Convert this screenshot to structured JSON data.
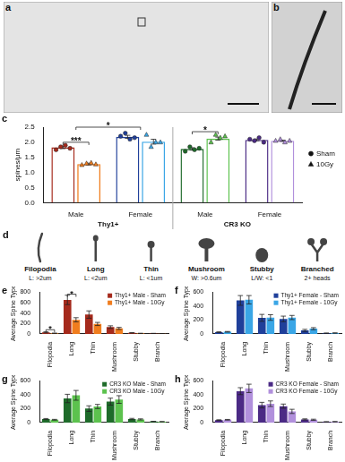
{
  "images": [
    {
      "label": "a"
    },
    {
      "label": "b"
    }
  ],
  "diagram": {
    "label": "d",
    "items": [
      {
        "name": "Filopodia",
        "criterion": "L: >2um"
      },
      {
        "name": "Long",
        "criterion": "L: <2um"
      },
      {
        "name": "Thin",
        "criterion": "L: <1um"
      },
      {
        "name": "Mushroom",
        "criterion": "W: >0.6um"
      },
      {
        "name": "Stubby",
        "criterion": "L/W: <1"
      },
      {
        "name": "Branched",
        "criterion": "2+ heads"
      }
    ]
  },
  "chart_data": [
    {
      "label": "c",
      "type": "bar",
      "y_label": "spines/μm",
      "categories": [
        "Male",
        "Female",
        "Male",
        "Female"
      ],
      "groups": [
        "Thy1+",
        "Thy1+",
        "CR3 KO",
        "CR3 KO"
      ],
      "ylim": [
        0,
        2.5
      ],
      "yticks": [
        {
          "value": 0,
          "label": "0.0"
        },
        {
          "value": 0.5,
          "label": "0.5"
        },
        {
          "value": 1,
          "label": "1.0"
        },
        {
          "value": 1.5,
          "label": "1.5"
        },
        {
          "value": 2,
          "label": "2.0"
        },
        {
          "value": 2.5,
          "label": "2.5"
        }
      ],
      "grid": false,
      "legend": "right",
      "series": [
        {
          "name": "Sham",
          "marker": "circle",
          "colors": [
            "#a52a1c",
            "#1f3f9a",
            "#1e6b2a",
            "#4b2a85"
          ],
          "values": [
            1.83,
            2.18,
            1.78,
            2.08
          ],
          "errors": [
            0.04,
            0.05,
            0.04,
            0.03
          ],
          "points": [
            [
              1.75,
              1.85,
              1.9,
              1.8
            ],
            [
              2.2,
              2.3,
              2.1,
              2.15
            ],
            [
              1.7,
              1.85,
              1.75,
              1.8
            ],
            [
              2.1,
              2.05,
              2.15,
              2.0
            ]
          ]
        },
        {
          "name": "10Gy",
          "marker": "triangle",
          "colors": [
            "#f07d1e",
            "#3aa6e6",
            "#5cc24e",
            "#b190dc"
          ],
          "values": [
            1.28,
            2.02,
            2.12,
            2.05
          ],
          "errors": [
            0.03,
            0.08,
            0.05,
            0.02
          ],
          "points": [
            [
              1.25,
              1.3,
              1.32,
              1.27
            ],
            [
              2.25,
              1.85,
              2.0,
              2.0
            ],
            [
              2.0,
              2.25,
              2.15,
              2.2
            ],
            [
              2.05,
              2.1,
              2.0,
              2.05
            ]
          ]
        }
      ],
      "annotations": [
        {
          "text": "***",
          "y": 2.0,
          "between": [
            [
              0,
              0
            ],
            [
              1,
              0
            ]
          ]
        },
        {
          "text": "*",
          "y": 2.5,
          "between": [
            [
              null,
              0
            ],
            [
              null,
              1
            ]
          ]
        },
        {
          "text": "*",
          "y": 2.35,
          "between": [
            [
              0,
              2
            ],
            [
              1,
              2
            ]
          ]
        }
      ]
    },
    {
      "label": "e",
      "type": "bar",
      "y_label": "Average Spine Type",
      "categories": [
        "Filopodia",
        "Long",
        "Thin",
        "Mushroom",
        "Stubby",
        "Branch"
      ],
      "ylim": [
        0,
        800
      ],
      "yticks": [
        0,
        200,
        400,
        600,
        800
      ],
      "grid": false,
      "legend": "upper right",
      "series": [
        {
          "name": "Thy1+ Male - Sham",
          "color": "#a52a1c",
          "values": [
            30,
            650,
            370,
            130,
            20,
            8
          ],
          "errors": [
            10,
            90,
            70,
            25,
            5,
            3
          ]
        },
        {
          "name": "Thy1+ Male - 10Gy",
          "color": "#f07d1e",
          "values": [
            12,
            270,
            190,
            105,
            10,
            3
          ],
          "errors": [
            3,
            40,
            30,
            20,
            3,
            2
          ]
        }
      ],
      "annotations": [
        {
          "text": "*",
          "y": 80,
          "between": [
            [
              0,
              0
            ],
            [
              1,
              0
            ]
          ]
        },
        {
          "text": "*",
          "y": 760,
          "between": [
            [
              0,
              1
            ],
            [
              1,
              1
            ]
          ]
        }
      ]
    },
    {
      "label": "f",
      "type": "bar",
      "y_label": "Average Spine Type",
      "categories": [
        "Filopodia",
        "Long",
        "Thin",
        "Mushroom",
        "Stubby",
        "Branch"
      ],
      "ylim": [
        0,
        600
      ],
      "yticks": [
        0,
        200,
        400,
        600
      ],
      "grid": false,
      "legend": "upper right",
      "series": [
        {
          "name": "Thy1+ Female - Sham",
          "color": "#1f3f9a",
          "values": [
            25,
            480,
            230,
            215,
            50,
            10
          ],
          "errors": [
            5,
            70,
            50,
            40,
            15,
            3
          ]
        },
        {
          "name": "Thy1+ Female - 10Gy",
          "color": "#3aa6e6",
          "values": [
            30,
            490,
            235,
            235,
            75,
            12
          ],
          "errors": [
            5,
            60,
            40,
            30,
            15,
            3
          ]
        }
      ]
    },
    {
      "label": "g",
      "type": "bar",
      "y_label": "Average Spine Type",
      "categories": [
        "Filopodia",
        "Long",
        "Thin",
        "Mushroom",
        "Stubby",
        "Branch"
      ],
      "ylim": [
        0,
        600
      ],
      "yticks": [
        0,
        200,
        400,
        600
      ],
      "grid": false,
      "legend": "upper right",
      "series": [
        {
          "name": "CR3 KO Male - Sham",
          "color": "#1e6b2a",
          "values": [
            50,
            345,
            200,
            300,
            50,
            15
          ],
          "errors": [
            8,
            60,
            40,
            50,
            10,
            3
          ]
        },
        {
          "name": "CR3 KO Male - 10Gy",
          "color": "#5cc24e",
          "values": [
            40,
            390,
            230,
            330,
            45,
            12
          ],
          "errors": [
            6,
            70,
            30,
            55,
            8,
            3
          ]
        }
      ]
    },
    {
      "label": "h",
      "type": "bar",
      "y_label": "Average Spine Type",
      "categories": [
        "Filopodia",
        "Long",
        "Thin",
        "Mushroom",
        "Stubby",
        "Branch"
      ],
      "ylim": [
        0,
        600
      ],
      "yticks": [
        0,
        200,
        400,
        600
      ],
      "grid": false,
      "legend": "upper right",
      "series": [
        {
          "name": "CR3 KO Female - Sham",
          "color": "#4b2a85",
          "values": [
            35,
            450,
            250,
            235,
            45,
            10
          ],
          "errors": [
            5,
            50,
            40,
            30,
            8,
            3
          ]
        },
        {
          "name": "CR3 KO Female - 10Gy",
          "color": "#b190dc",
          "values": [
            40,
            490,
            270,
            160,
            40,
            12
          ],
          "errors": [
            5,
            60,
            40,
            30,
            8,
            3
          ]
        }
      ]
    }
  ]
}
